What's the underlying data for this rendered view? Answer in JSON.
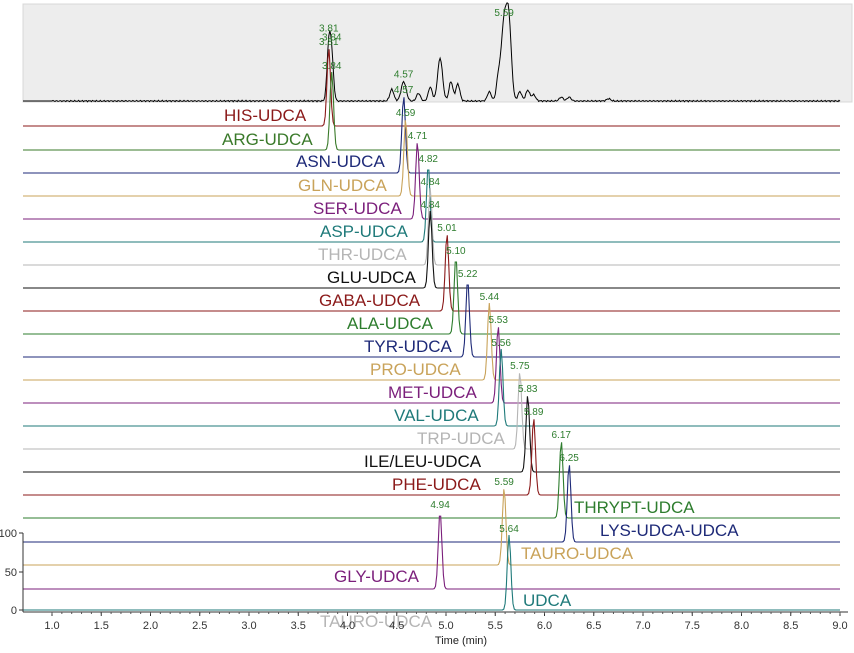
{
  "chart_data": {
    "type": "line",
    "title": "",
    "xlabel": "Time (min)",
    "ylabel": "",
    "xlim": [
      1.0,
      9.0
    ],
    "x_ticks": [
      "1.0",
      "1.5",
      "2.0",
      "2.5",
      "3.0",
      "3.5",
      "4.0",
      "4.5",
      "5.0",
      "5.5",
      "6.0",
      "6.5",
      "7.0",
      "7.5",
      "8.0",
      "8.5",
      "9.0"
    ],
    "y_ticks": [
      "0",
      "50",
      "100"
    ],
    "ylim": [
      0,
      100
    ],
    "tic": {
      "shaded": true,
      "color": "#000000",
      "peaks": [
        {
          "rt": 3.81,
          "h": 0.7,
          "w": 0.018
        },
        {
          "rt": 3.84,
          "h": 0.55,
          "w": 0.018
        },
        {
          "rt": 4.45,
          "h": 0.15,
          "w": 0.02
        },
        {
          "rt": 4.57,
          "h": 0.25,
          "w": 0.025
        },
        {
          "rt": 4.72,
          "h": 0.1,
          "w": 0.02
        },
        {
          "rt": 4.84,
          "h": 0.18,
          "w": 0.02
        },
        {
          "rt": 4.94,
          "h": 0.55,
          "w": 0.025
        },
        {
          "rt": 5.05,
          "h": 0.25,
          "w": 0.02
        },
        {
          "rt": 5.12,
          "h": 0.22,
          "w": 0.02
        },
        {
          "rt": 5.44,
          "h": 0.12,
          "w": 0.02
        },
        {
          "rt": 5.53,
          "h": 0.25,
          "w": 0.02
        },
        {
          "rt": 5.59,
          "h": 1.0,
          "w": 0.03
        },
        {
          "rt": 5.64,
          "h": 0.9,
          "w": 0.025
        },
        {
          "rt": 5.75,
          "h": 0.12,
          "w": 0.02
        },
        {
          "rt": 5.83,
          "h": 0.14,
          "w": 0.02
        },
        {
          "rt": 5.89,
          "h": 0.08,
          "w": 0.02
        },
        {
          "rt": 6.17,
          "h": 0.05,
          "w": 0.02
        },
        {
          "rt": 6.25,
          "h": 0.05,
          "w": 0.02
        },
        {
          "rt": 6.65,
          "h": 0.03,
          "w": 0.02
        }
      ],
      "labels": [
        {
          "text": "3.81",
          "rt": 3.81,
          "color": "#2e7d2e"
        },
        {
          "text": "3.84",
          "rt": 3.84,
          "color": "#2e7d2e"
        },
        {
          "text": "4.57",
          "rt": 4.57,
          "color": "#2e7d2e"
        },
        {
          "text": "5.59",
          "rt": 5.59,
          "color": "#2e7d2e"
        }
      ]
    },
    "series": [
      {
        "name": "HIS-UDCA",
        "color": "#8b1a1a",
        "peak": 3.81,
        "label": "3.81"
      },
      {
        "name": "ARG-UDCA",
        "color": "#3a7a2a",
        "peak": 3.84,
        "label": "3.84"
      },
      {
        "name": "ASN-UDCA",
        "color": "#1e2a78",
        "peak": 4.57,
        "label": "4.57"
      },
      {
        "name": "GLN-UDCA",
        "color": "#c9a35a",
        "peak": 4.59,
        "label": "4.59"
      },
      {
        "name": "SER-UDCA",
        "color": "#7b1f7b",
        "peak": 4.71,
        "label": "4.71"
      },
      {
        "name": "ASP-UDCA",
        "color": "#1f7a7a",
        "peak": 4.82,
        "label": "4.82"
      },
      {
        "name": "THR-UDCA",
        "color": "#b5b5b5",
        "peak": 4.84,
        "label": "4.84"
      },
      {
        "name": "GLU-UDCA",
        "color": "#111111",
        "peak": 4.84,
        "label": "4.84"
      },
      {
        "name": "GABA-UDCA",
        "color": "#8b1a1a",
        "peak": 5.01,
        "label": "5.01"
      },
      {
        "name": "ALA-UDCA",
        "color": "#2e7d2e",
        "peak": 5.1,
        "label": "5.10"
      },
      {
        "name": "TYR-UDCA",
        "color": "#1e2a78",
        "peak": 5.22,
        "label": "5.22"
      },
      {
        "name": "PRO-UDCA",
        "color": "#c9a35a",
        "peak": 5.44,
        "label": "5.44"
      },
      {
        "name": "MET-UDCA",
        "color": "#7b1f7b",
        "peak": 5.53,
        "label": "5.53"
      },
      {
        "name": "VAL-UDCA",
        "color": "#1f7a7a",
        "peak": 5.56,
        "label": "5.56"
      },
      {
        "name": "TRP-UDCA",
        "color": "#b5b5b5",
        "peak": 5.75,
        "label": "5.75"
      },
      {
        "name": "ILE/LEU-UDCA",
        "color": "#111111",
        "peak": 5.83,
        "label": "5.83"
      },
      {
        "name": "PHE-UDCA",
        "color": "#8b1a1a",
        "peak": 5.89,
        "label": "5.89"
      },
      {
        "name": "THRYPT-UDCA",
        "color": "#2e7d2e",
        "peak": 6.17,
        "label": "6.17"
      },
      {
        "name": "LYS-UDCA-UDCA",
        "color": "#1e2a78",
        "peak": 6.25,
        "label": "6.25"
      },
      {
        "name": "TAURO-UDCA",
        "color": "#c9a35a",
        "peak": 5.59,
        "label": "5.59"
      },
      {
        "name": "GLY-UDCA",
        "color": "#7b1f7b",
        "peak": 4.94,
        "label": "4.94"
      },
      {
        "name": "UDCA",
        "color": "#1f7a7a",
        "peak": 5.64,
        "label": "5.64"
      },
      {
        "name": "TAURO-UDCA",
        "color": "#b5b5b5",
        "peak": null,
        "label": ""
      }
    ]
  }
}
